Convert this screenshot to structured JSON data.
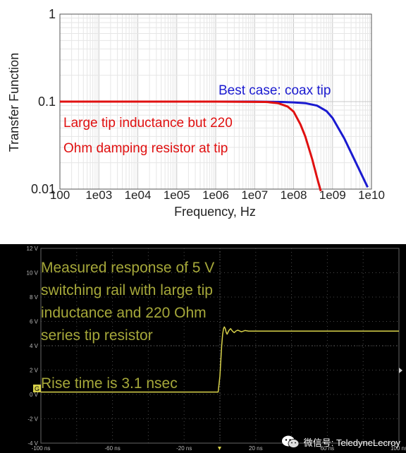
{
  "chart_data": [
    {
      "type": "line",
      "xlabel": "Frequency, Hz",
      "ylabel": "Transfer Function",
      "xscale": "log",
      "yscale": "log",
      "xlim": [
        100,
        10000000000
      ],
      "ylim": [
        0.01,
        1
      ],
      "x_ticks": [
        "100",
        "1e03",
        "1e04",
        "1e05",
        "1e06",
        "1e07",
        "1e08",
        "1e09",
        "1e10"
      ],
      "y_ticks": [
        "0.01",
        "0.1",
        "1"
      ],
      "grid": true,
      "series": [
        {
          "name": "Best case: coax tip",
          "color": "#1a1ad0",
          "x": [
            100,
            10000000,
            50000000,
            100000000,
            200000000,
            400000000,
            700000000,
            1000000000,
            2000000000,
            4000000000,
            8000000000
          ],
          "y": [
            0.1,
            0.1,
            0.099,
            0.098,
            0.096,
            0.09,
            0.078,
            0.065,
            0.038,
            0.02,
            0.0105
          ]
        },
        {
          "name": "Large tip inductance but 220 Ohm damping resistor at tip",
          "color": "#e01010",
          "x": [
            100,
            1000000,
            20000000,
            40000000,
            70000000,
            100000000,
            150000000,
            200000000,
            300000000,
            400000000,
            500000000
          ],
          "y": [
            0.1,
            0.1,
            0.099,
            0.096,
            0.088,
            0.077,
            0.055,
            0.04,
            0.022,
            0.0135,
            0.0095
          ]
        }
      ],
      "annotations": [
        "Best case: coax tip",
        "Large tip inductance but 220",
        "Ohm damping resistor at tip"
      ]
    },
    {
      "type": "line",
      "y_ticks": [
        "12 V",
        "10 V",
        "8 V",
        "6 V",
        "4 V",
        "2 V",
        "0 V",
        "-2 V",
        "-4 V"
      ],
      "x_ticks": [
        "-100 ns",
        "-60 ns",
        "-20 ns",
        "20 ns",
        "60 ns",
        "100 ns"
      ],
      "xlim": [
        -100,
        100
      ],
      "ylim": [
        -4,
        12
      ],
      "grid": true,
      "trace_color": "#d8d24a",
      "ground_marker": "G",
      "series": [
        {
          "x": [
            -100,
            -1,
            0,
            0.5,
            1,
            1.5,
            2,
            2.5,
            3,
            3.5,
            4,
            5,
            6,
            7,
            8,
            9,
            10,
            12,
            14,
            16,
            20,
            30,
            100
          ],
          "y": [
            0.2,
            0.2,
            1.5,
            2.8,
            4.0,
            4.9,
            5.4,
            5.55,
            5.4,
            5.1,
            4.95,
            5.25,
            5.4,
            5.2,
            5.08,
            5.22,
            5.28,
            5.15,
            5.25,
            5.2,
            5.2,
            5.2,
            5.2
          ]
        }
      ],
      "annotations": [
        "Measured response of 5 V",
        "switching rail with large tip",
        "inductance and 220 Ohm",
        "series tip resistor",
        "Rise time is 3.1 nsec"
      ]
    }
  ],
  "watermark": {
    "text": "微信号: TeledyneLecroy",
    "icon": "wechat-icon"
  }
}
